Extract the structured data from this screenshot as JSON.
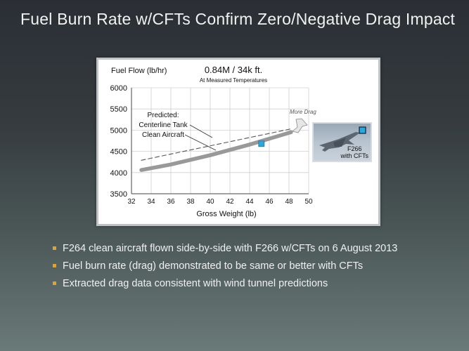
{
  "slide": {
    "title": "Fuel Burn Rate w/CFTs Confirm Zero/Negative Drag Impact"
  },
  "bullets": [
    "F264 clean aircraft flown side-by-side with F266 w/CFTs on 6 August 2013",
    "Fuel burn rate (drag) demonstrated to be same or better with CFTs",
    "Extracted drag data consistent with wind tunnel predictions"
  ],
  "inset": {
    "label_line1": "F266",
    "label_line2": "with CFTs",
    "marker_color": "#29a9e0"
  },
  "chart_data": {
    "type": "line",
    "title": "0.84M / 34k ft.",
    "subtitle": "At Measured Temperatures",
    "ylabel": "Fuel Flow (lb/hr)",
    "xlabel": "Gross Weight (lb)",
    "xlim": [
      32,
      50
    ],
    "ylim": [
      3500,
      6000
    ],
    "xticks": [
      32,
      34,
      36,
      38,
      40,
      42,
      44,
      46,
      48,
      50
    ],
    "yticks": [
      3500,
      4000,
      4500,
      5000,
      5500,
      6000
    ],
    "grid": true,
    "series": [
      {
        "name": "Centerline Tank",
        "style": "dashed",
        "color": "#555555",
        "x": [
          33,
          48.2
        ],
        "y": [
          4290,
          5030
        ]
      },
      {
        "name": "Clean Aircraft",
        "style": "thick",
        "color": "#999999",
        "x": [
          33,
          36,
          40,
          44,
          48.2
        ],
        "y": [
          4060,
          4190,
          4410,
          4660,
          4950
        ]
      }
    ],
    "points": [
      {
        "x": 45.2,
        "y": 4680,
        "color": "#29a9e0"
      }
    ],
    "annotations": {
      "predicted_line1": "Predicted:",
      "predicted_line2": "Centerline Tank",
      "predicted_line3": "Clean Aircraft",
      "more_drag": "More Drag"
    }
  }
}
